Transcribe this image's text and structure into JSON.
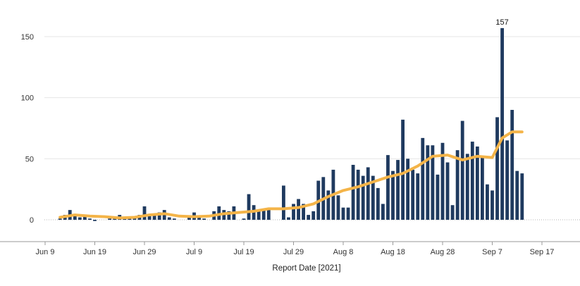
{
  "chart_data": {
    "type": "bar",
    "title": "",
    "xlabel": "Report Date [2021]",
    "ylabel": "",
    "ylim": [
      0,
      165
    ],
    "grid": true,
    "y_ticks": [
      0,
      50,
      100,
      150
    ],
    "x_ticks": [
      "Jun 9",
      "Jun 19",
      "Jun 29",
      "Jul 9",
      "Jul 19",
      "Jul 29",
      "Aug 8",
      "Aug 18",
      "Aug 28",
      "Sep 7",
      "Sep 17"
    ],
    "data_labels": [
      {
        "date": "2021-09-09",
        "text": "157"
      }
    ],
    "colors": {
      "bars": "#1f3a5f",
      "average_line": "#f4b448",
      "grid": "#e6e6e6",
      "axis": "#9a9a9a"
    },
    "series": [
      {
        "type": "bar",
        "x": [
          "2021-06-12",
          "2021-06-13",
          "2021-06-14",
          "2021-06-15",
          "2021-06-16",
          "2021-06-17",
          "2021-06-18",
          "2021-06-19",
          "2021-06-20",
          "2021-06-21",
          "2021-06-22",
          "2021-06-23",
          "2021-06-24",
          "2021-06-25",
          "2021-06-26",
          "2021-06-27",
          "2021-06-28",
          "2021-06-29",
          "2021-06-30",
          "2021-07-01",
          "2021-07-02",
          "2021-07-03",
          "2021-07-04",
          "2021-07-05",
          "2021-07-06",
          "2021-07-07",
          "2021-07-08",
          "2021-07-09",
          "2021-07-10",
          "2021-07-11",
          "2021-07-12",
          "2021-07-13",
          "2021-07-14",
          "2021-07-15",
          "2021-07-16",
          "2021-07-17",
          "2021-07-18",
          "2021-07-19",
          "2021-07-20",
          "2021-07-21",
          "2021-07-22",
          "2021-07-23",
          "2021-07-24",
          "2021-07-25",
          "2021-07-26",
          "2021-07-27",
          "2021-07-28",
          "2021-07-29",
          "2021-07-30",
          "2021-07-31",
          "2021-08-01",
          "2021-08-02",
          "2021-08-03",
          "2021-08-04",
          "2021-08-05",
          "2021-08-06",
          "2021-08-07",
          "2021-08-08",
          "2021-08-09",
          "2021-08-10",
          "2021-08-11",
          "2021-08-12",
          "2021-08-13",
          "2021-08-14",
          "2021-08-15",
          "2021-08-16",
          "2021-08-17",
          "2021-08-18",
          "2021-08-19",
          "2021-08-20",
          "2021-08-21",
          "2021-08-22",
          "2021-08-23",
          "2021-08-24",
          "2021-08-25",
          "2021-08-26",
          "2021-08-27",
          "2021-08-28",
          "2021-08-29",
          "2021-08-30",
          "2021-08-31",
          "2021-09-01",
          "2021-09-02",
          "2021-09-03",
          "2021-09-04",
          "2021-09-05",
          "2021-09-06",
          "2021-09-07",
          "2021-09-08",
          "2021-09-09",
          "2021-09-10",
          "2021-09-11",
          "2021-09-12",
          "2021-09-13"
        ],
        "values": [
          1,
          4,
          8,
          3,
          2,
          4,
          1,
          -1,
          0,
          0,
          1,
          2,
          4,
          2,
          1,
          2,
          4,
          11,
          4,
          5,
          6,
          8,
          2,
          1,
          0,
          0,
          3,
          6,
          2,
          1,
          0,
          7,
          11,
          8,
          7,
          11,
          0,
          1,
          21,
          12,
          8,
          9,
          9,
          0,
          0,
          28,
          2,
          13,
          17,
          13,
          4,
          7,
          32,
          35,
          24,
          41,
          20,
          10,
          10,
          45,
          41,
          36,
          43,
          36,
          26,
          13,
          53,
          40,
          49,
          82,
          50,
          41,
          38,
          67,
          61,
          61,
          37,
          63,
          47,
          12,
          57,
          81,
          54,
          64,
          60,
          52,
          29,
          24,
          84,
          157,
          65,
          90,
          40,
          38
        ]
      },
      {
        "type": "line",
        "x": [
          "2021-06-12",
          "2021-06-15",
          "2021-06-18",
          "2021-06-21",
          "2021-06-24",
          "2021-06-27",
          "2021-06-30",
          "2021-07-03",
          "2021-07-06",
          "2021-07-09",
          "2021-07-12",
          "2021-07-15",
          "2021-07-18",
          "2021-07-21",
          "2021-07-24",
          "2021-07-27",
          "2021-07-30",
          "2021-08-02",
          "2021-08-05",
          "2021-08-08",
          "2021-08-11",
          "2021-08-14",
          "2021-08-17",
          "2021-08-20",
          "2021-08-23",
          "2021-08-26",
          "2021-08-29",
          "2021-09-01",
          "2021-09-04",
          "2021-09-07",
          "2021-09-09",
          "2021-09-11",
          "2021-09-13"
        ],
        "values": [
          2,
          4,
          3,
          2.5,
          1.5,
          2,
          4,
          5,
          3,
          2.5,
          3,
          5,
          6,
          7,
          9,
          9,
          10,
          13,
          19,
          24,
          27,
          31,
          35,
          38,
          44,
          52,
          53,
          49,
          52,
          51,
          67,
          72,
          72
        ]
      }
    ]
  }
}
